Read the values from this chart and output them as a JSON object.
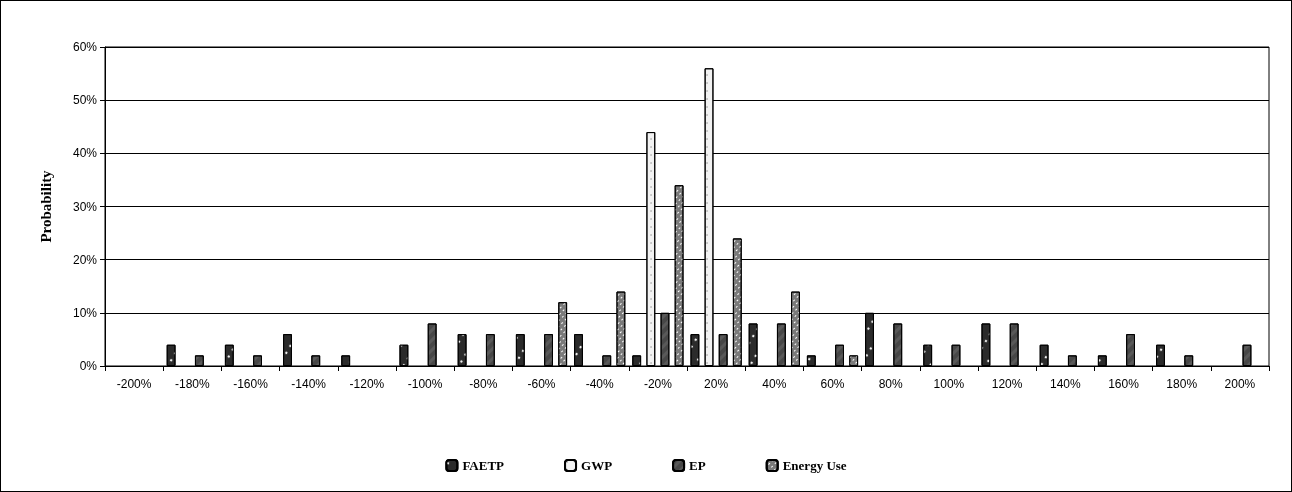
{
  "chart_data": {
    "type": "bar",
    "ylabel": "Probability",
    "categories": [
      "-200%",
      "-180%",
      "-160%",
      "-140%",
      "-120%",
      "-100%",
      "-80%",
      "-60%",
      "-40%",
      "-20%",
      "20%",
      "40%",
      "60%",
      "80%",
      "100%",
      "120%",
      "140%",
      "160%",
      "180%",
      "200%"
    ],
    "series": [
      {
        "name": "FAETP",
        "color": "#2b2b2b",
        "values": [
          0,
          4,
          4,
          6,
          2,
          4,
          6,
          6,
          6,
          2,
          6,
          8,
          2,
          10,
          4,
          8,
          4,
          2,
          4,
          0
        ]
      },
      {
        "name": "GWP",
        "color": "#f2f2f2",
        "values": [
          0,
          0,
          0,
          0,
          0,
          0,
          0,
          0,
          0,
          44,
          56,
          0,
          0,
          0,
          0,
          0,
          0,
          0,
          0,
          0
        ]
      },
      {
        "name": "EP",
        "color": "#595959",
        "values": [
          0,
          2,
          2,
          2,
          0,
          8,
          6,
          6,
          2,
          10,
          6,
          8,
          4,
          8,
          4,
          8,
          2,
          6,
          2,
          4
        ]
      },
      {
        "name": "Energy Use",
        "color": "#7a7a7a",
        "values": [
          0,
          0,
          0,
          0,
          0,
          0,
          0,
          12,
          14,
          34,
          24,
          14,
          2,
          0,
          0,
          0,
          0,
          0,
          0,
          0
        ]
      }
    ],
    "ylim": [
      0,
      60
    ],
    "yticks": [
      {
        "value": 0,
        "label": "0%"
      },
      {
        "value": 10,
        "label": "10%"
      },
      {
        "value": 20,
        "label": "20%"
      },
      {
        "value": 30,
        "label": "30%"
      },
      {
        "value": 40,
        "label": "40%"
      },
      {
        "value": 50,
        "label": "50%"
      },
      {
        "value": 60,
        "label": "60%"
      }
    ],
    "grid": "y",
    "legend": "bottom"
  }
}
